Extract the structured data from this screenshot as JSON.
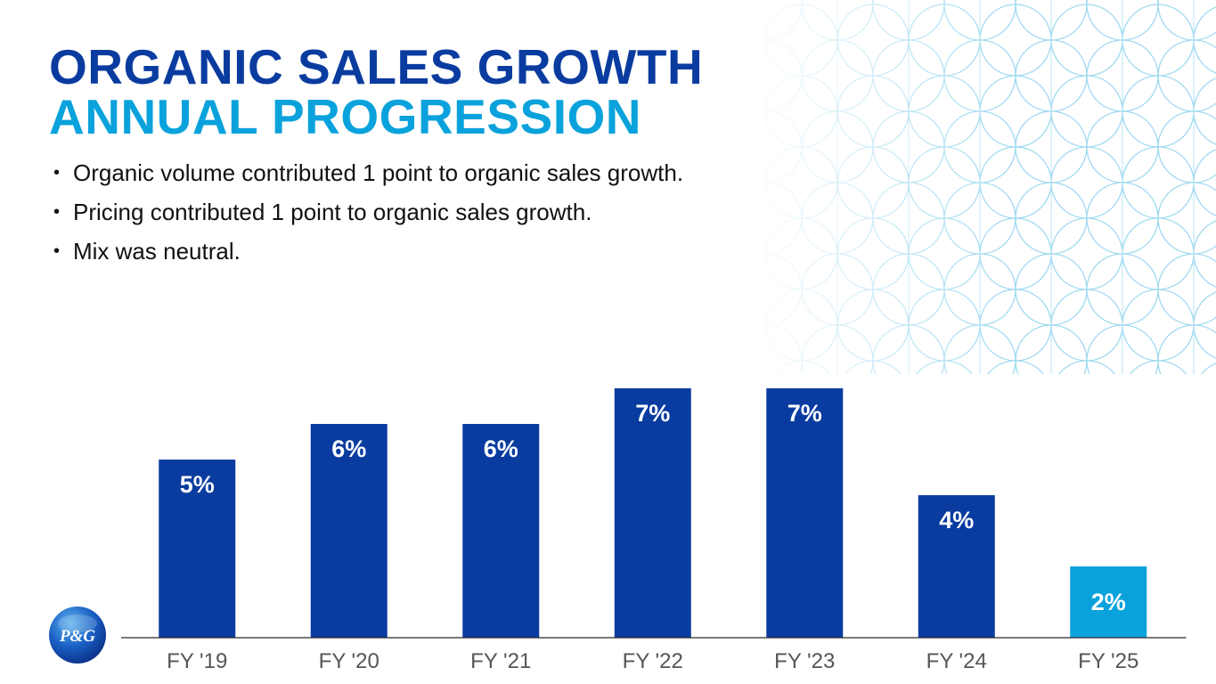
{
  "slide": {
    "title_line1": "ORGANIC SALES GROWTH",
    "title_line2": "ANNUAL PROGRESSION",
    "bullets": [
      "Organic volume contributed 1 point to organic sales growth.",
      "Pricing contributed 1 point to organic sales growth.",
      "Mix was neutral."
    ],
    "logo_text": "P&G"
  },
  "colors": {
    "primary": "#0a3ca0",
    "accent": "#0aa2dc",
    "text": "#111111",
    "axis_label": "#555555",
    "deco": "#8fd3ee"
  },
  "chart_data": {
    "type": "bar",
    "title": "",
    "xlabel": "",
    "ylabel": "",
    "categories": [
      "FY '19",
      "FY '20",
      "FY '21",
      "FY '22",
      "FY '23",
      "FY '24",
      "FY '25"
    ],
    "values": [
      5,
      6,
      6,
      7,
      7,
      4,
      2
    ],
    "data_labels": [
      "5%",
      "6%",
      "6%",
      "7%",
      "7%",
      "4%",
      "2%"
    ],
    "highlight_index": 6,
    "ylim": [
      0,
      7
    ],
    "grid": false,
    "legend": "none"
  }
}
